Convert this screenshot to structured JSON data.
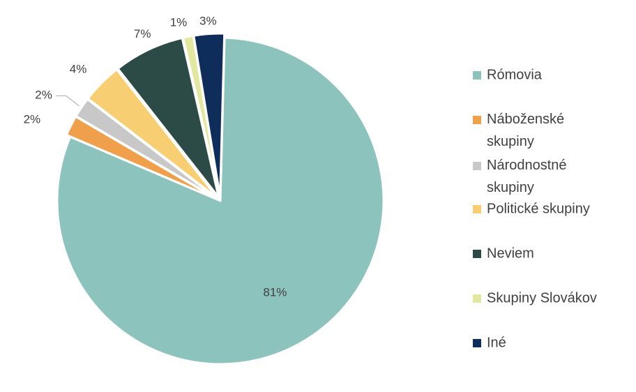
{
  "chart_data": {
    "type": "pie",
    "slices": [
      {
        "label": "Rómovia",
        "value": 81,
        "value_label": "81%",
        "color": "#8dc3bd"
      },
      {
        "label": "Náboženské skupiny",
        "value": 2,
        "value_label": "2%",
        "color": "#f0a04a"
      },
      {
        "label": "Národnostné skupiny",
        "value": 2,
        "value_label": "2%",
        "color": "#c8c8c8"
      },
      {
        "label": "Politické skupiny",
        "value": 4,
        "value_label": "4%",
        "color": "#f7cf72"
      },
      {
        "label": "Neviem",
        "value": 7,
        "value_label": "7%",
        "color": "#2c4b47"
      },
      {
        "label": "Skupiny Slovákov",
        "value": 1,
        "value_label": "1%",
        "color": "#e2e8a0"
      },
      {
        "label": "Iné",
        "value": 3,
        "value_label": "3%",
        "color": "#0f2d5a"
      }
    ],
    "legend_position": "right"
  }
}
